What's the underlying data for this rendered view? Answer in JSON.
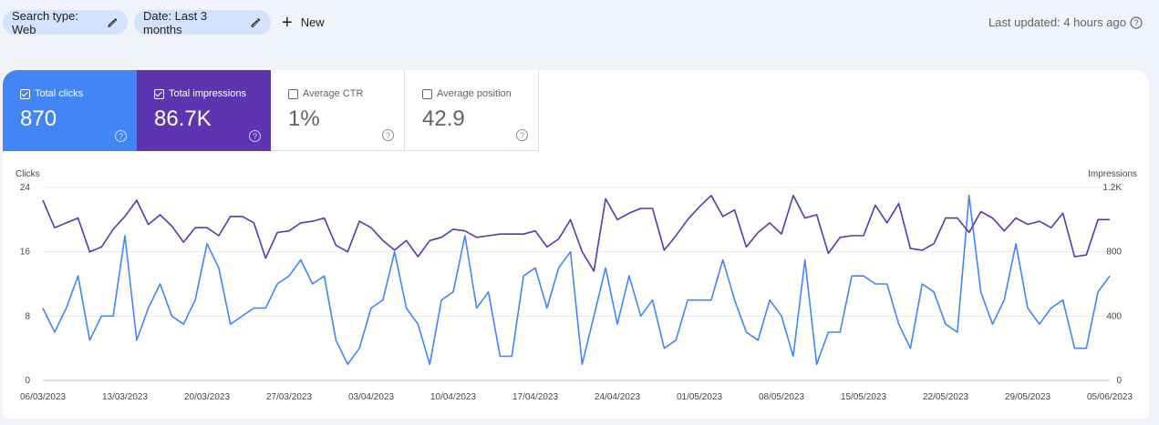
{
  "filters": {
    "search_type": "Search type: Web",
    "date": "Date: Last 3 months",
    "new_label": "New"
  },
  "last_updated": "Last updated: 4 hours ago",
  "metrics": {
    "clicks": {
      "label": "Total clicks",
      "value": "870",
      "checked": true,
      "color": "#4285f4"
    },
    "impressions": {
      "label": "Total impressions",
      "value": "86.7K",
      "checked": true,
      "color": "#5e35b1"
    },
    "ctr": {
      "label": "Average CTR",
      "value": "1%",
      "checked": false
    },
    "position": {
      "label": "Average position",
      "value": "42.9",
      "checked": false
    }
  },
  "icons": [
    "pencil-icon",
    "plus-icon",
    "help-icon",
    "checkbox-icon"
  ],
  "chart_data": {
    "type": "line",
    "left_axis": {
      "label": "Clicks",
      "ticks": [
        "0",
        "8",
        "16",
        "24"
      ],
      "ylim": [
        0,
        24
      ]
    },
    "right_axis": {
      "label": "Impressions",
      "ticks": [
        "0",
        "400",
        "800",
        "1.2K"
      ],
      "ylim": [
        0,
        1200
      ]
    },
    "x_ticks": [
      "06/03/2023",
      "13/03/2023",
      "20/03/2023",
      "27/03/2023",
      "03/04/2023",
      "10/04/2023",
      "17/04/2023",
      "24/04/2023",
      "01/05/2023",
      "08/05/2023",
      "15/05/2023",
      "22/05/2023",
      "29/05/2023",
      "05/06/2023"
    ],
    "grid": true,
    "series": [
      {
        "name": "Clicks",
        "axis": "left",
        "color": "#4285f4",
        "values": [
          9,
          6,
          9,
          13,
          5,
          8,
          8,
          18,
          5,
          9,
          12,
          8,
          7,
          10,
          17,
          14,
          7,
          8,
          9,
          9,
          12,
          13,
          15,
          12,
          13,
          5,
          2,
          4,
          9,
          10,
          16,
          9,
          7,
          2,
          10,
          11,
          18,
          9,
          11,
          3,
          3,
          13,
          14,
          9,
          14,
          16,
          2,
          8,
          14,
          7,
          13,
          8,
          10,
          4,
          5,
          10,
          10,
          10,
          15,
          10,
          6,
          5,
          10,
          8,
          3,
          15,
          2,
          6,
          6,
          13,
          13,
          12,
          12,
          7,
          4,
          12,
          11,
          7,
          6,
          23,
          11,
          7,
          10,
          17,
          9,
          7,
          9,
          10,
          4,
          4,
          11,
          13
        ]
      },
      {
        "name": "Impressions",
        "axis": "right",
        "color": "#5e35b1",
        "values": [
          1120,
          950,
          980,
          1010,
          800,
          830,
          940,
          1020,
          1120,
          970,
          1030,
          960,
          860,
          950,
          950,
          900,
          1020,
          1020,
          980,
          760,
          920,
          930,
          980,
          990,
          1010,
          840,
          800,
          990,
          950,
          870,
          810,
          870,
          770,
          870,
          890,
          940,
          930,
          890,
          900,
          910,
          910,
          910,
          930,
          830,
          880,
          1000,
          800,
          680,
          1130,
          1000,
          1040,
          1070,
          1070,
          810,
          900,
          1000,
          1080,
          1150,
          1020,
          1060,
          830,
          920,
          980,
          910,
          1150,
          1010,
          1030,
          790,
          890,
          900,
          900,
          1090,
          980,
          1100,
          820,
          810,
          850,
          1010,
          1010,
          920,
          1050,
          1010,
          930,
          1010,
          970,
          990,
          950,
          1040,
          770,
          780,
          1000,
          1000
        ]
      }
    ]
  }
}
